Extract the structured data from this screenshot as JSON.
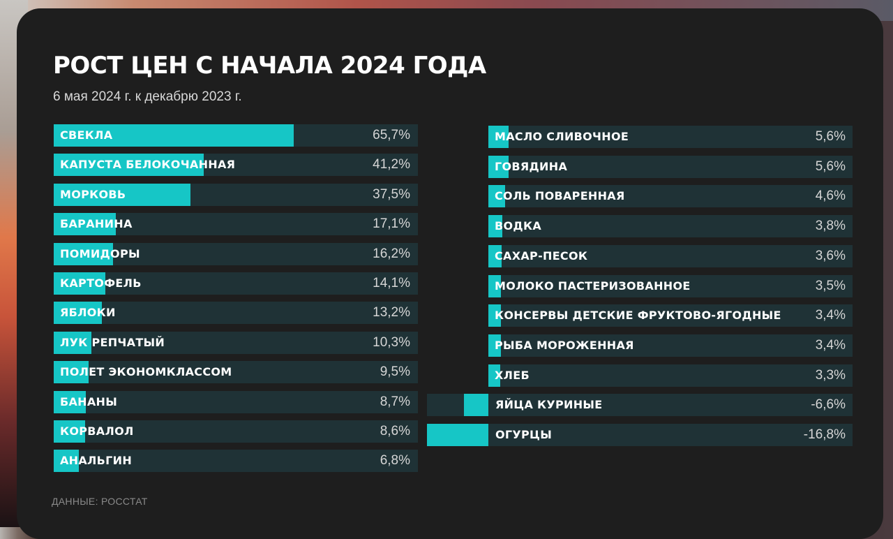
{
  "header": {
    "title": "РОСТ ЦЕН С НАЧАЛА 2024 ГОДА",
    "subtitle": "6 мая 2024 г. к декабрю 2023 г."
  },
  "footer": {
    "source": "ДАННЫЕ: РОССТАТ"
  },
  "colors": {
    "bar": "#16c6c6",
    "track": "#1f3236",
    "card": "#1e1e1e"
  },
  "chart_data": [
    {
      "type": "bar",
      "orientation": "horizontal",
      "unit": "%",
      "xlim": [
        0,
        100
      ],
      "categories": [
        "СВЕКЛА",
        "КАПУСТА БЕЛОКОЧАННАЯ",
        "МОРКОВЬ",
        "БАРАНИНА",
        "ПОМИДОРЫ",
        "КАРТОФЕЛЬ",
        "ЯБЛОКИ",
        "ЛУК РЕПЧАТЫЙ",
        "ПОЛЕТ ЭКОНОМКЛАССОМ",
        "БАНАНЫ",
        "КОРВАЛОЛ",
        "АНАЛЬГИН"
      ],
      "values": [
        65.7,
        41.2,
        37.5,
        17.1,
        16.2,
        14.1,
        13.2,
        10.3,
        9.5,
        8.7,
        8.6,
        6.8
      ],
      "value_labels": [
        "65,7%",
        "41,2%",
        "37,5%",
        "17,1%",
        "16,2%",
        "14,1%",
        "13,2%",
        "10,3%",
        "9,5%",
        "8,7%",
        "8,6%",
        "6,8%"
      ]
    },
    {
      "type": "bar",
      "orientation": "horizontal",
      "unit": "%",
      "xlim": [
        -16.8,
        100
      ],
      "categories": [
        "МАСЛО СЛИВОЧНОЕ",
        "ГОВЯДИНА",
        "СОЛЬ ПОВАРЕННАЯ",
        "ВОДКА",
        "САХАР-ПЕСОК",
        "МОЛОКО ПАСТЕРИЗОВАННОЕ",
        "КОНСЕРВЫ ДЕТСКИЕ ФРУКТОВО-ЯГОДНЫЕ",
        "РЫБА МОРОЖЕННАЯ",
        "ХЛЕБ",
        "ЯЙЦА КУРИНЫЕ",
        "ОГУРЦЫ"
      ],
      "values": [
        5.6,
        5.6,
        4.6,
        3.8,
        3.6,
        3.5,
        3.4,
        3.4,
        3.3,
        -6.6,
        -16.8
      ],
      "value_labels": [
        "5,6%",
        "5,6%",
        "4,6%",
        "3,8%",
        "3,6%",
        "3,5%",
        "3,4%",
        "3,4%",
        "3,3%",
        "-6,6%",
        "-16,8%"
      ]
    }
  ]
}
